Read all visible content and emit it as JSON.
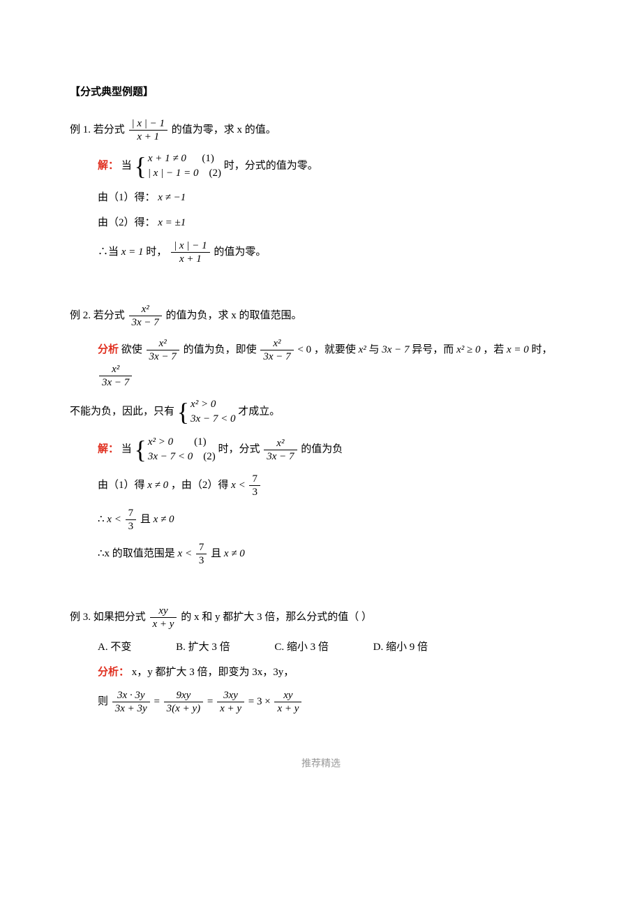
{
  "header": "【分式典型例题】",
  "ex1": {
    "label": "例 1.  若分式",
    "tail": "的值为零，求 x 的值。",
    "sol_label": "解：",
    "sys1": "x + 1 ≠ 0",
    "sys1tag": "(1)",
    "sys2": "| x | − 1 = 0",
    "sys2tag": "(2)",
    "sys_tail": "时，分式的值为零。",
    "step1": "由（1）得：",
    "step1m": "x ≠ −1",
    "step2": "由（2）得：",
    "step2m": "x = ±1",
    "conc_a": "∴当",
    "conc_m": "x = 1",
    "conc_b": "时，",
    "conc_tail": "的值为零。",
    "frac_num": "| x | − 1",
    "frac_den": "x + 1"
  },
  "ex2": {
    "label": "例 2.  若分式",
    "tail": "的值为负，求 x 的取值范围。",
    "an_label": "分析",
    "an_a": "欲使",
    "an_b": "的值为负，即使",
    "an_c": "，就要使",
    "an_d": "与",
    "an_e": "异号，而",
    "an_f": "，若",
    "an_g": "时，",
    "an2_a": "不能为负，因此，只有",
    "an2_b": "才成立。",
    "sol_label": "解：",
    "sys1": "x² > 0",
    "sys1tag": "(1)",
    "sys2": "3x − 7 < 0",
    "sys2tag": "(2)",
    "sys_tail": "时，分式",
    "sys_tail2": "的值为负",
    "step1": "由（1）得",
    "step1m": "x ≠ 0",
    "step1b": "，由（2）得",
    "conc1": "∴",
    "conc1_and": "且",
    "conc2a": "∴x 的取值范围是",
    "conc2_and": "且",
    "frac_num": "x²",
    "frac_den": "3x − 7",
    "sys_a1": "x² > 0",
    "sys_a2": "3x − 7 < 0",
    "x2": "x²",
    "tm7": "3x − 7",
    "x2ge0": "x² ≥ 0",
    "xeq0": "x = 0",
    "xlt73_num": "7",
    "xlt73_den": "3",
    "xne0": "x ≠ 0"
  },
  "ex3": {
    "label": "例 3.  如果把分式",
    "tail": "的 x 和 y 都扩大 3 倍，那么分式的值（        ）",
    "frac_num": "xy",
    "frac_den": "x + y",
    "optA": "A.  不变",
    "optB": "B.  扩大 3 倍",
    "optC": "C.  缩小 3 倍",
    "optD": "D.  缩小 9 倍",
    "an_label": "分析：",
    "an_text": "x，y 都扩大 3 倍，即变为 3x，3y，",
    "calc_pre": "则",
    "f1n": "3x · 3y",
    "f1d": "3x + 3y",
    "f2n": "9xy",
    "f2d": "3(x + y)",
    "f3n": "3xy",
    "f3d": "x + y",
    "f4pre": "3 ×",
    "f4n": "xy",
    "f4d": "x + y"
  },
  "footer": "推荐精选"
}
